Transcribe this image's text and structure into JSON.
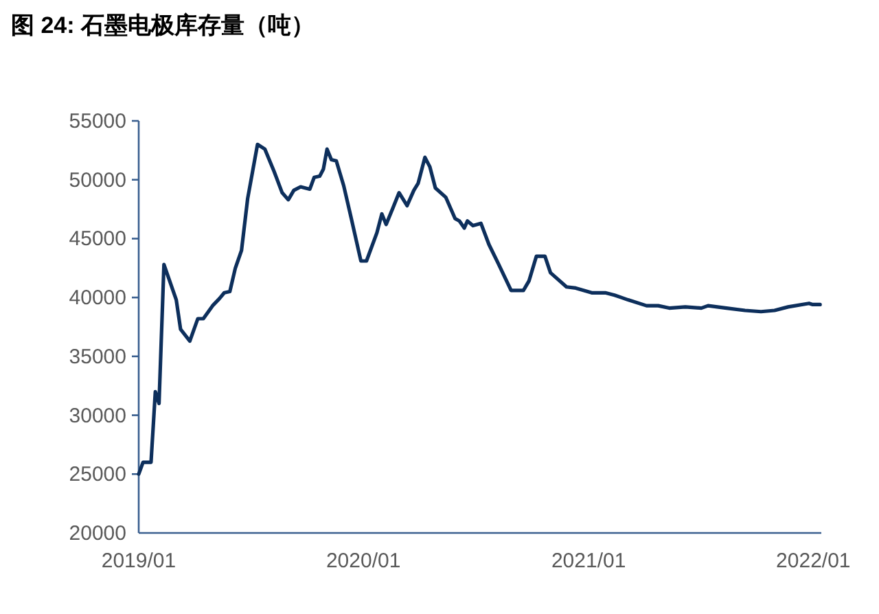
{
  "chart_data": {
    "type": "line",
    "title": "图 24: 石墨电极库存量（吨）",
    "x": [
      "2019-01-01",
      "2019-01-08",
      "2019-01-21",
      "2019-01-28",
      "2019-02-03",
      "2019-02-11",
      "2019-03-03",
      "2019-03-10",
      "2019-03-25",
      "2019-04-07",
      "2019-04-16",
      "2019-05-01",
      "2019-05-12",
      "2019-05-20",
      "2019-05-29",
      "2019-06-07",
      "2019-06-17",
      "2019-06-27",
      "2019-07-13",
      "2019-07-25",
      "2019-08-09",
      "2019-08-22",
      "2019-09-01",
      "2019-09-10",
      "2019-09-21",
      "2019-10-06",
      "2019-10-13",
      "2019-10-22",
      "2019-10-28",
      "2019-11-03",
      "2019-11-10",
      "2019-11-18",
      "2019-11-30",
      "2019-12-12",
      "2019-12-28",
      "2020-01-06",
      "2020-01-23",
      "2020-01-31",
      "2020-02-07",
      "2020-02-18",
      "2020-02-28",
      "2020-03-12",
      "2020-03-23",
      "2020-03-30",
      "2020-04-10",
      "2020-04-18",
      "2020-04-27",
      "2020-05-14",
      "2020-05-29",
      "2020-06-05",
      "2020-06-13",
      "2020-06-18",
      "2020-06-27",
      "2020-07-10",
      "2020-07-23",
      "2020-08-07",
      "2020-08-28",
      "2020-09-17",
      "2020-09-26",
      "2020-10-08",
      "2020-10-22",
      "2020-10-31",
      "2020-11-26",
      "2020-12-11",
      "2021-01-06",
      "2021-01-28",
      "2021-02-12",
      "2021-02-23",
      "2021-03-06",
      "2021-04-05",
      "2021-04-24",
      "2021-05-12",
      "2021-06-07",
      "2021-07-03",
      "2021-07-14",
      "2021-08-13",
      "2021-09-12",
      "2021-10-08",
      "2021-10-30",
      "2021-11-21",
      "2021-12-25",
      "2021-12-31",
      "2022-01-12"
    ],
    "series": [
      {
        "color": "#0d2f5c",
        "values": [
          25000,
          26000,
          26000,
          32000,
          31000,
          42800,
          39800,
          37300,
          36300,
          38200,
          38200,
          39300,
          39900,
          40400,
          40500,
          42500,
          44000,
          48400,
          53000,
          52600,
          50700,
          48900,
          48300,
          49100,
          49400,
          49200,
          50200,
          50300,
          50900,
          52600,
          51700,
          51600,
          49500,
          46800,
          43100,
          43100,
          45500,
          47100,
          46200,
          47600,
          48900,
          47800,
          49100,
          49700,
          51900,
          51100,
          49300,
          48500,
          46700,
          46500,
          45900,
          46500,
          46100,
          46300,
          44500,
          42900,
          40600,
          40600,
          41400,
          43500,
          43500,
          42100,
          40900,
          40800,
          40400,
          40400,
          40200,
          40000,
          39800,
          39300,
          39300,
          39100,
          39200,
          39100,
          39300,
          39100,
          38900,
          38800,
          38900,
          39200,
          39500,
          39400,
          39400
        ]
      }
    ],
    "xlim": [
      "2019-01-01",
      "2022-01-14"
    ],
    "xticks": [
      {
        "value": "2019-01-01",
        "label": "2019/01"
      },
      {
        "value": "2020-01-01",
        "label": "2020/01"
      },
      {
        "value": "2021-01-01",
        "label": "2021/01"
      },
      {
        "value": "2022-01-01",
        "label": "2022/01"
      }
    ],
    "ylim": [
      20000,
      55000
    ],
    "yticks": [
      20000,
      25000,
      30000,
      35000,
      40000,
      45000,
      50000,
      55000
    ],
    "grid": false,
    "legend": false,
    "marker": "none",
    "line_style": "solid"
  }
}
